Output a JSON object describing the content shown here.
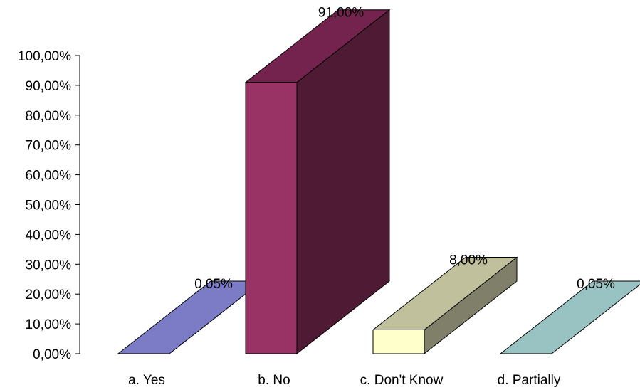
{
  "chart_data": {
    "type": "bar",
    "style": "3d",
    "categories": [
      "a. Yes",
      "b. No",
      "c. Don't Know",
      "d. Partially"
    ],
    "values": [
      0.05,
      91.0,
      8.0,
      0.05
    ],
    "data_labels": [
      "0,05%",
      "91,00%",
      "8,00%",
      "0,05%"
    ],
    "ylim": [
      0,
      100
    ],
    "yticks": [
      0,
      10,
      20,
      30,
      40,
      50,
      60,
      70,
      80,
      90,
      100
    ],
    "ytick_labels": [
      "0,00%",
      "10,00%",
      "20,00%",
      "30,00%",
      "40,00%",
      "50,00%",
      "60,00%",
      "70,00%",
      "80,00%",
      "90,00%",
      "100,00%"
    ],
    "title": "",
    "xlabel": "",
    "ylabel": "",
    "grid": false,
    "legend": "none",
    "colors": [
      {
        "front": "#7b7bc6",
        "top": "#7b7bc6",
        "side": "#5a5a99"
      },
      {
        "front": "#993366",
        "top": "#73234d",
        "side": "#4f1a33"
      },
      {
        "front": "#ffffcc",
        "top": "#c0c09c",
        "side": "#80806a"
      },
      {
        "front": "#99c2c2",
        "top": "#99c2c2",
        "side": "#6e9393"
      }
    ]
  }
}
